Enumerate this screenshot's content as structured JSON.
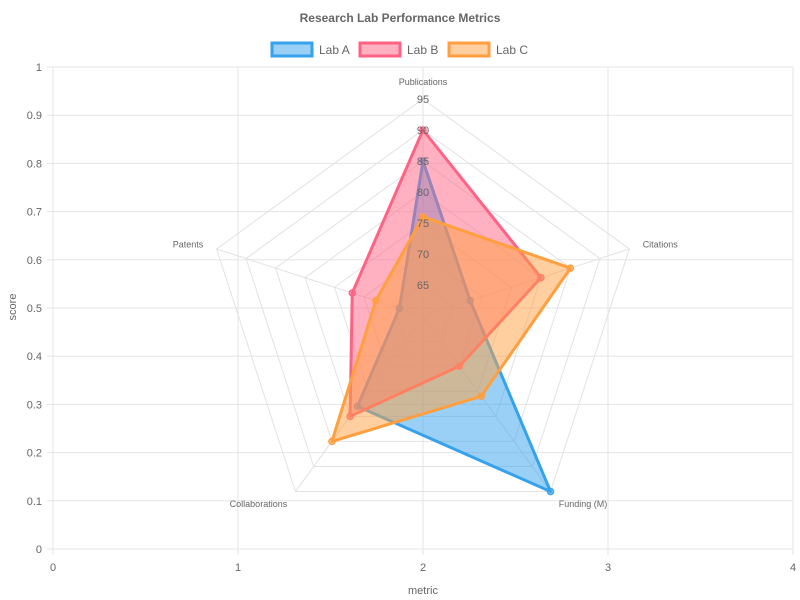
{
  "chart_data": {
    "type": "radar",
    "title": "Research Lab Performance Metrics",
    "xlabel": "metric",
    "ylabel": "score",
    "x_ticks": [
      "0",
      "1",
      "2",
      "3",
      "4"
    ],
    "y_ticks": [
      "0",
      "0.1",
      "0.2",
      "0.3",
      "0.4",
      "0.5",
      "0.6",
      "0.7",
      "0.8",
      "0.9",
      "1"
    ],
    "legend_position": "top",
    "grid": true,
    "categories": [
      "Publications",
      "Citations",
      "Funding (M)",
      "Collaborations",
      "Patents"
    ],
    "r_ticks": [
      65,
      70,
      75,
      80,
      85,
      90,
      95
    ],
    "r_range": [
      60,
      95
    ],
    "series": [
      {
        "name": "Lab A",
        "values": [
          85,
          68,
          95,
          78,
          64
        ]
      },
      {
        "name": "Lab B",
        "values": [
          90,
          80,
          70,
          80,
          72
        ]
      },
      {
        "name": "Lab C",
        "values": [
          76,
          85,
          76,
          85,
          68
        ]
      }
    ],
    "colors": {
      "Lab A": {
        "stroke": "#36A2EB",
        "fill": "rgba(54,162,235,0.5)"
      },
      "Lab B": {
        "stroke": "#FF6384",
        "fill": "rgba(255,99,132,0.5)"
      },
      "Lab C": {
        "stroke": "#FF9F40",
        "fill": "rgba(255,159,64,0.5)"
      }
    }
  }
}
